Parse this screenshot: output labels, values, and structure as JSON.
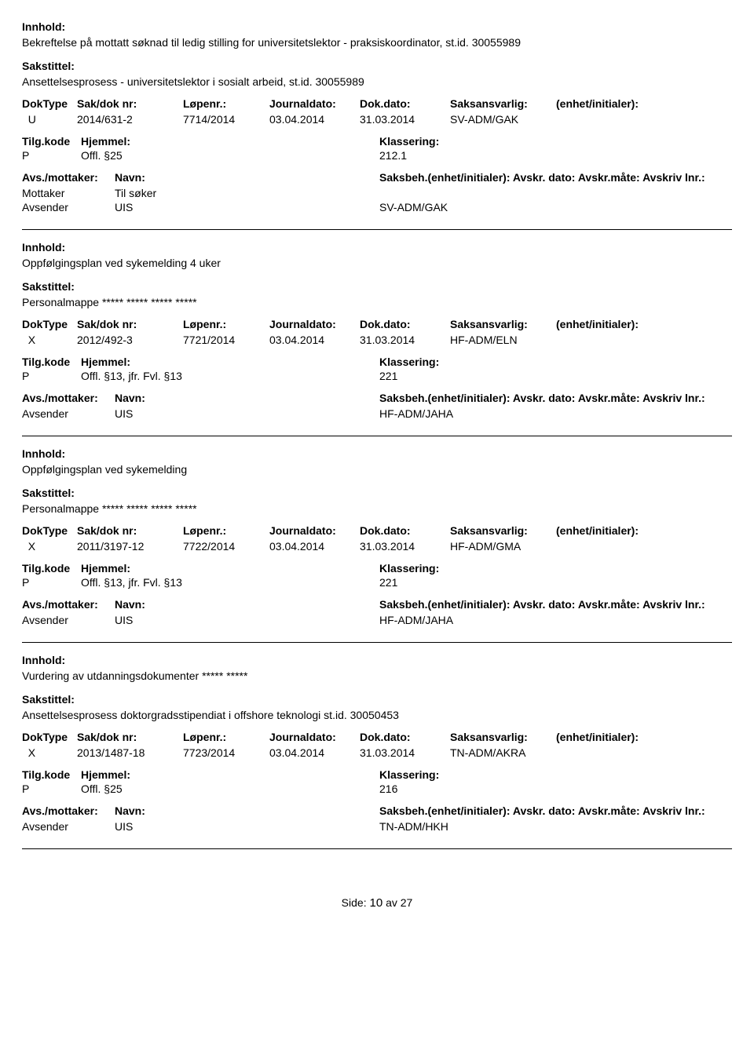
{
  "labels": {
    "innhold": "Innhold:",
    "sakstittel": "Sakstittel:",
    "doktype": "DokType",
    "sakdok": "Sak/dok nr:",
    "lopenr": "Løpenr.:",
    "journaldato": "Journaldato:",
    "dokdato": "Dok.dato:",
    "saksansvarlig": "Saksansvarlig:",
    "enhet": "(enhet/initialer):",
    "tilgkode": "Tilg.kode",
    "hjemmel": "Hjemmel:",
    "klassering": "Klassering:",
    "avsmottaker": "Avs./mottaker:",
    "navn": "Navn:",
    "saksbeh": "Saksbeh.(enhet/initialer): Avskr. dato:  Avskr.måte: Avskriv lnr.:",
    "mottaker": "Mottaker",
    "avsender": "Avsender",
    "side": "Side:",
    "av": "av"
  },
  "footer": {
    "page": "10",
    "total": "27"
  },
  "records": [
    {
      "innhold": "Bekreftelse på mottatt søknad til ledig stilling for universitetslektor - praksiskoordinator, st.id. 30055989",
      "sakstittel": "Ansettelsesprosess - universitetslektor i sosialt arbeid, st.id. 30055989",
      "doktype": "U",
      "sakdok": "2014/631-2",
      "lopenr": "7714/2014",
      "journaldato": "03.04.2014",
      "dokdato": "31.03.2014",
      "saksansvarlig": "SV-ADM/GAK",
      "tilgkode": "P",
      "hjemmel": "Offl. §25",
      "klassering": "212.1",
      "parties": [
        {
          "role": "Mottaker",
          "name": "Til søker",
          "saksbeh": ""
        },
        {
          "role": "Avsender",
          "name": "UIS",
          "saksbeh": "SV-ADM/GAK"
        }
      ]
    },
    {
      "innhold": "Oppfølgingsplan ved sykemelding 4 uker",
      "sakstittel": "Personalmappe ***** ***** ***** *****",
      "doktype": "X",
      "sakdok": "2012/492-3",
      "lopenr": "7721/2014",
      "journaldato": "03.04.2014",
      "dokdato": "31.03.2014",
      "saksansvarlig": "HF-ADM/ELN",
      "tilgkode": "P",
      "hjemmel": "Offl. §13, jfr. Fvl. §13",
      "klassering": "221",
      "parties": [
        {
          "role": "Avsender",
          "name": "UIS",
          "saksbeh": "HF-ADM/JAHA"
        }
      ]
    },
    {
      "innhold": "Oppfølgingsplan ved sykemelding",
      "sakstittel": "Personalmappe ***** ***** ***** *****",
      "doktype": "X",
      "sakdok": "2011/3197-12",
      "lopenr": "7722/2014",
      "journaldato": "03.04.2014",
      "dokdato": "31.03.2014",
      "saksansvarlig": "HF-ADM/GMA",
      "tilgkode": "P",
      "hjemmel": "Offl. §13, jfr. Fvl. §13",
      "klassering": "221",
      "parties": [
        {
          "role": "Avsender",
          "name": "UIS",
          "saksbeh": "HF-ADM/JAHA"
        }
      ]
    },
    {
      "innhold": "Vurdering av utdanningsdokumenter ***** *****",
      "sakstittel": "Ansettelsesprosess doktorgradsstipendiat i offshore teknologi st.id. 30050453",
      "doktype": "X",
      "sakdok": "2013/1487-18",
      "lopenr": "7723/2014",
      "journaldato": "03.04.2014",
      "dokdato": "31.03.2014",
      "saksansvarlig": "TN-ADM/AKRA",
      "tilgkode": "P",
      "hjemmel": "Offl. §25",
      "klassering": "216",
      "parties": [
        {
          "role": "Avsender",
          "name": "UIS",
          "saksbeh": "TN-ADM/HKH"
        }
      ]
    }
  ]
}
